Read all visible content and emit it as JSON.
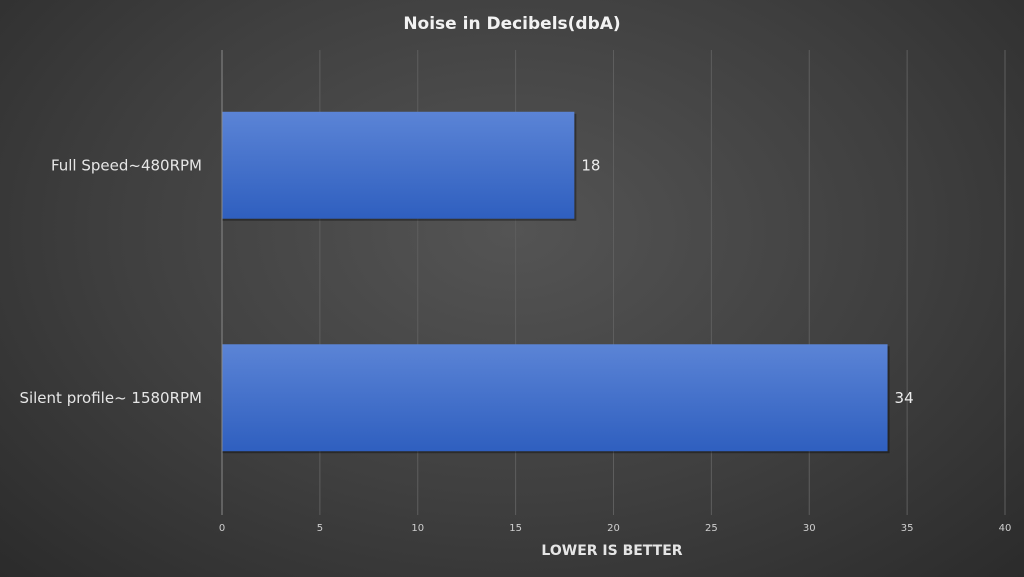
{
  "chart_data": {
    "type": "bar",
    "orientation": "horizontal",
    "title": "Noise in Decibels(dbA)",
    "xlabel": "LOWER IS BETTER",
    "ylabel": "",
    "categories": [
      "Full Speed~480RPM",
      "Silent profile~ 1580RPM"
    ],
    "values": [
      18,
      34
    ],
    "data_labels": [
      "18",
      "34"
    ],
    "xlim": [
      0,
      40
    ],
    "xticks": [
      0,
      5,
      10,
      15,
      20,
      25,
      30,
      35,
      40
    ],
    "grid": true,
    "legend": "none",
    "colors": {
      "bar_top": "#5b84d6",
      "bar_bottom": "#2f5fbf",
      "background": "#444444"
    }
  }
}
